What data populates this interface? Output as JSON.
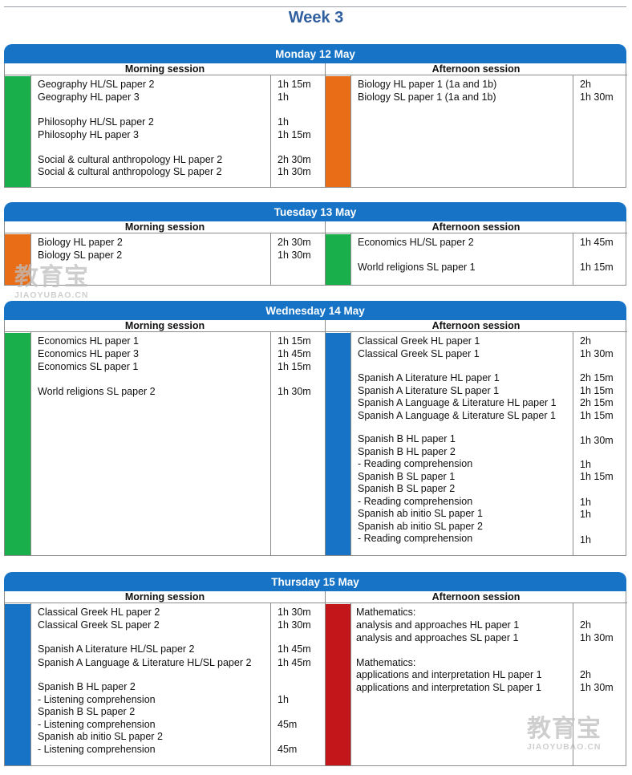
{
  "page_title": "Week 3",
  "session_labels": {
    "morning": "Morning session",
    "afternoon": "Afternoon session"
  },
  "colors": {
    "header_blue": "#1673c6",
    "green": "#19b04b",
    "orange": "#e96d17",
    "blue": "#1673c6",
    "red": "#c3161b"
  },
  "watermark": {
    "cn": "教育宝",
    "en": "JIAOYUBAO.CN"
  },
  "days": [
    {
      "date": "Monday 12 May",
      "morning": {
        "color": "green",
        "items": [
          {
            "subject": "Geography HL/SL paper 2",
            "duration": "1h 15m"
          },
          {
            "subject": "Geography HL paper 3",
            "duration": "1h"
          },
          {
            "subject": "Philosophy HL/SL paper 2",
            "duration": "1h"
          },
          {
            "subject": "Philosophy HL paper 3",
            "duration": "1h 15m"
          },
          {
            "subject": "Social & cultural anthropology HL paper 2",
            "duration": "2h 30m"
          },
          {
            "subject": "Social & cultural anthropology SL paper 2",
            "duration": "1h 30m"
          }
        ]
      },
      "afternoon": {
        "color": "orange",
        "items": [
          {
            "subject": "Biology HL paper 1 (1a and 1b)",
            "duration": "2h"
          },
          {
            "subject": "Biology SL paper 1 (1a and 1b)",
            "duration": "1h 30m"
          }
        ]
      }
    },
    {
      "date": "Tuesday 13 May",
      "morning": {
        "color": "orange",
        "items": [
          {
            "subject": "Biology HL paper 2",
            "duration": "2h 30m"
          },
          {
            "subject": "Biology SL paper 2",
            "duration": "1h 30m"
          }
        ]
      },
      "afternoon": {
        "color": "green",
        "items": [
          {
            "subject": "Economics HL/SL paper 2",
            "duration": "1h 45m"
          },
          {
            "subject": "World religions SL paper 1",
            "duration": "1h 15m"
          }
        ]
      }
    },
    {
      "date": "Wednesday 14 May",
      "morning": {
        "color": "green",
        "items": [
          {
            "subject": "Economics HL paper 1",
            "duration": "1h 15m"
          },
          {
            "subject": "Economics HL paper 3",
            "duration": "1h 45m"
          },
          {
            "subject": "Economics SL paper 1",
            "duration": "1h 15m"
          },
          {
            "subject": "World religions SL paper 2",
            "duration": "1h 30m"
          }
        ]
      },
      "afternoon": {
        "color": "blue",
        "items": [
          {
            "subject": "Classical Greek HL paper 1",
            "duration": "2h"
          },
          {
            "subject": "Classical Greek SL paper 1",
            "duration": "1h 30m"
          },
          {
            "subject": "Spanish A Literature HL paper 1",
            "duration": "2h 15m"
          },
          {
            "subject": "Spanish A Literature SL paper 1",
            "duration": "1h 15m"
          },
          {
            "subject": "Spanish A Language & Literature HL paper 1",
            "duration": "2h 15m"
          },
          {
            "subject": "Spanish A Language & Literature SL paper 1",
            "duration": "1h 15m"
          },
          {
            "subject": "Spanish B HL paper 1",
            "duration": "1h 30m"
          },
          {
            "subject": "Spanish B HL paper 2",
            "duration": ""
          },
          {
            "subject": "- Reading comprehension",
            "duration": "1h"
          },
          {
            "subject": "Spanish B SL paper 1",
            "duration": "1h 15m"
          },
          {
            "subject": "Spanish B SL paper 2",
            "duration": ""
          },
          {
            "subject": "- Reading comprehension",
            "duration": "1h"
          },
          {
            "subject": "Spanish ab initio SL paper 1",
            "duration": "1h"
          },
          {
            "subject": "Spanish ab initio SL paper 2",
            "duration": ""
          },
          {
            "subject": "- Reading comprehension",
            "duration": "1h"
          }
        ]
      }
    },
    {
      "date": "Thursday 15 May",
      "morning": {
        "color": "blue",
        "items": [
          {
            "subject": "Classical Greek HL paper 2",
            "duration": "1h 30m"
          },
          {
            "subject": "Classical Greek SL paper 2",
            "duration": "1h 30m"
          },
          {
            "subject": "Spanish A Literature HL/SL paper 2",
            "duration": "1h 45m"
          },
          {
            "subject": "Spanish A Language & Literature HL/SL paper 2",
            "duration": "1h 45m"
          },
          {
            "subject": "Spanish B HL paper 2",
            "duration": ""
          },
          {
            "subject": "- Listening comprehension",
            "duration": "1h"
          },
          {
            "subject": "Spanish B SL paper 2",
            "duration": ""
          },
          {
            "subject": "- Listening comprehension",
            "duration": "45m"
          },
          {
            "subject": "Spanish ab initio SL paper 2",
            "duration": ""
          },
          {
            "subject": "- Listening comprehension",
            "duration": "45m"
          }
        ]
      },
      "afternoon": {
        "color": "red",
        "items": [
          {
            "subject": "Mathematics:",
            "duration": ""
          },
          {
            "subject": "analysis and approaches HL paper 1",
            "duration": "2h"
          },
          {
            "subject": "analysis and approaches SL paper 1",
            "duration": "1h 30m"
          },
          {
            "subject": "Mathematics:",
            "duration": ""
          },
          {
            "subject": "applications and interpretation HL paper 1",
            "duration": "2h"
          },
          {
            "subject": "applications and interpretation SL paper 1",
            "duration": "1h 30m"
          }
        ]
      }
    }
  ]
}
